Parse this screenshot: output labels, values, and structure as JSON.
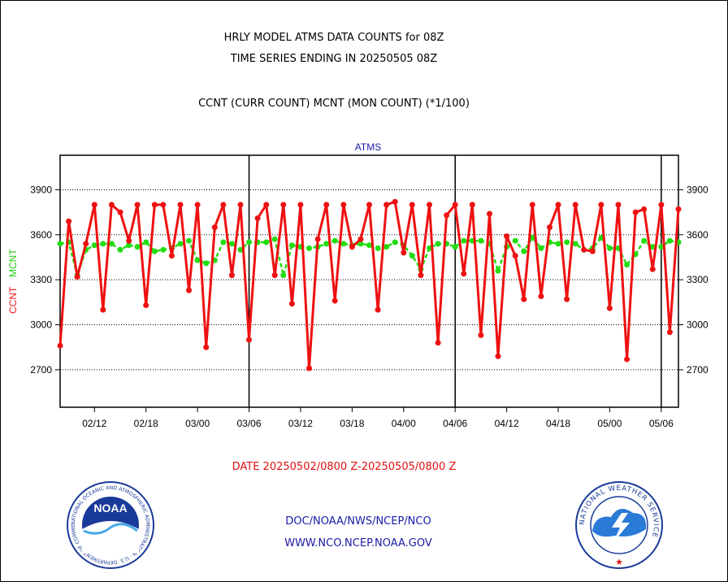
{
  "header": {
    "title_line1": "HRLY MODEL ATMS DATA COUNTS for 08Z",
    "title_line2": "TIME SERIES ENDING IN 20250505 08Z",
    "subtitle": "CCNT (CURR COUNT) MCNT (MON COUNT) (*1/100)"
  },
  "footer": {
    "date_range": "DATE 20250502/0800 Z-20250505/0800 Z",
    "link1": "DOC/NOAA/NWS/NCEP/NCO",
    "link2": "WWW.NCO.NCEP.NOAA.GOV",
    "noaa_logo_text": "NOAA",
    "noaa_seal_text": "NATIONAL OCEANIC AND ATMOSPHERIC ADMINISTRATION · U.S. DEPARTMENT OF COMMERCE",
    "nws_seal_text": "NATIONAL WEATHER SERVICE"
  },
  "colors": {
    "ccnt": "#ee1111",
    "mcnt": "#22dd11",
    "panel_label": "#1a1aa6"
  },
  "chart_data": {
    "type": "line",
    "panel_title": "ATMS",
    "ylabel_ccnt": "CCNT",
    "ylabel_mcnt": "MCNT",
    "y_ticks": [
      "3900",
      "3600",
      "3300",
      "3000",
      "2700"
    ],
    "y_tick_values": [
      3900,
      3600,
      3300,
      3000,
      2700
    ],
    "ylim": [
      2450,
      4130
    ],
    "x_ticks": [
      "02/12",
      "02/18",
      "03/00",
      "03/06",
      "03/12",
      "03/18",
      "04/00",
      "04/06",
      "04/12",
      "04/18",
      "05/00",
      "05/06"
    ],
    "x_tick_hours": [
      4,
      10,
      16,
      22,
      28,
      34,
      40,
      46,
      52,
      58,
      64,
      70
    ],
    "xlim": [
      0,
      72
    ],
    "day_boundaries": [
      22,
      46,
      70
    ],
    "grid": "horizontal dotted",
    "series": [
      {
        "name": "CCNT",
        "values": [
          2860,
          3690,
          3320,
          3540,
          3800,
          3100,
          3800,
          3750,
          3560,
          3800,
          3130,
          3800,
          3800,
          3460,
          3800,
          3230,
          3800,
          2850,
          3650,
          3800,
          3330,
          3800,
          2900,
          3710,
          3800,
          3330,
          3800,
          3140,
          3800,
          2710,
          3570,
          3800,
          3160,
          3800,
          3520,
          3570,
          3800,
          3100,
          3800,
          3820,
          3480,
          3800,
          3330,
          3800,
          2880,
          3730,
          3800,
          3340,
          3800,
          2930,
          3740,
          2790,
          3590,
          3460,
          3170,
          3800,
          3190,
          3650,
          3800,
          3170,
          3800,
          3500,
          3490,
          3800,
          3110,
          3800,
          2770,
          3750,
          3770,
          3370,
          3800,
          2950,
          3770
        ]
      },
      {
        "name": "MCNT",
        "values": [
          3540,
          3550,
          3330,
          3500,
          3530,
          3540,
          3540,
          3500,
          3530,
          3520,
          3550,
          3490,
          3500,
          3510,
          3540,
          3560,
          3430,
          3410,
          3430,
          3550,
          3540,
          3500,
          3550,
          3550,
          3550,
          3570,
          3330,
          3530,
          3520,
          3510,
          3520,
          3540,
          3560,
          3540,
          3530,
          3540,
          3530,
          3510,
          3520,
          3550,
          3530,
          3460,
          3370,
          3510,
          3540,
          3540,
          3520,
          3560,
          3560,
          3560,
          3540,
          3360,
          3520,
          3560,
          3490,
          3580,
          3510,
          3550,
          3540,
          3550,
          3540,
          3500,
          3510,
          3580,
          3510,
          3510,
          3400,
          3470,
          3560,
          3520,
          3520,
          3560,
          3550
        ]
      }
    ]
  }
}
